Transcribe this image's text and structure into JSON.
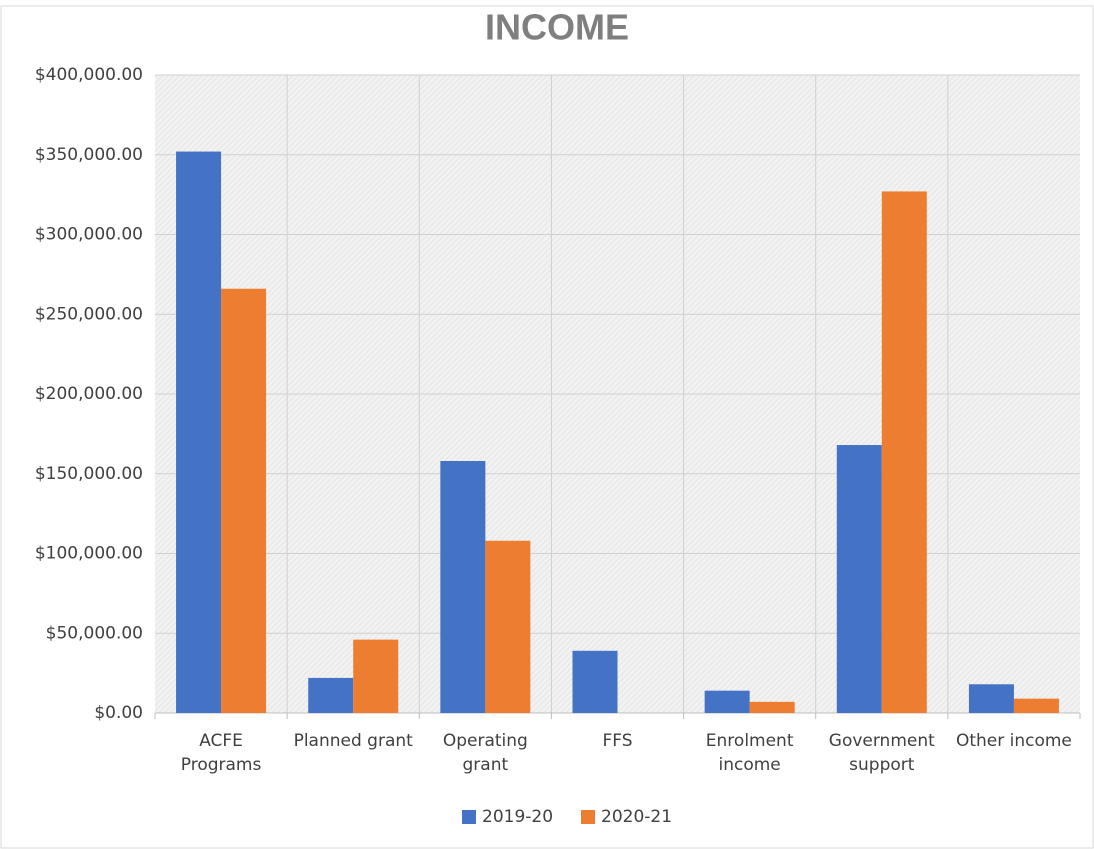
{
  "chart_data": {
    "type": "bar",
    "title": "INCOME",
    "categories": [
      "ACFE Programs",
      "Planned grant",
      "Operating grant",
      "FFS",
      "Enrolment income",
      "Government support",
      "Other income"
    ],
    "series": [
      {
        "name": "2019-20",
        "color": "#4472c4",
        "values": [
          352000,
          22000,
          158000,
          39000,
          14000,
          168000,
          18000
        ]
      },
      {
        "name": "2020-21",
        "color": "#ed7d31",
        "values": [
          266000,
          46000,
          108000,
          0,
          7000,
          327000,
          9000
        ]
      }
    ],
    "ylim": [
      0,
      400000
    ],
    "yticks": [
      {
        "value": 0,
        "label": "$0.00"
      },
      {
        "value": 50000,
        "label": "$50,000.00"
      },
      {
        "value": 100000,
        "label": "$100,000.00"
      },
      {
        "value": 150000,
        "label": "$150,000.00"
      },
      {
        "value": 200000,
        "label": "$200,000.00"
      },
      {
        "value": 250000,
        "label": "$250,000.00"
      },
      {
        "value": 300000,
        "label": "$300,000.00"
      },
      {
        "value": 350000,
        "label": "$350,000.00"
      },
      {
        "value": 400000,
        "label": "$400,000.00"
      }
    ],
    "grid": true,
    "legend": "bottom"
  }
}
